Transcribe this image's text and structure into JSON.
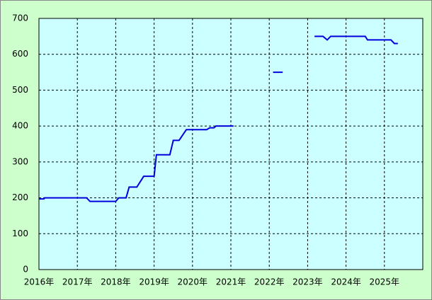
{
  "chart_data": {
    "type": "line",
    "x": [
      2016,
      2016.13,
      2016.15,
      2017.24,
      2017.33,
      2018.0,
      2018.08,
      2018.27,
      2018.35,
      2018.55,
      2018.73,
      2019.0,
      2019.06,
      2019.41,
      2019.5,
      2019.65,
      2019.84,
      2020.37,
      2020.45,
      2020.56,
      2020.61,
      2021.07,
      2021.5,
      2022.1,
      2022.35,
      2022.7,
      2023.18,
      2023.4,
      2023.51,
      2023.6,
      2024.5,
      2024.56,
      2025.17,
      2025.26,
      2025.35
    ],
    "series": [
      {
        "color": "#0000dd",
        "values": [
          197,
          197,
          200,
          200,
          190,
          190,
          200,
          200,
          230,
          230,
          260,
          260,
          320,
          320,
          360,
          360,
          390,
          390,
          395,
          395,
          400,
          400,
          null,
          550,
          550,
          null,
          650,
          650,
          640,
          650,
          650,
          640,
          640,
          630,
          630
        ]
      }
    ],
    "xlim": [
      2016,
      2026
    ],
    "xticks": [
      {
        "value": 2016,
        "label": "2016年"
      },
      {
        "value": 2017,
        "label": "2017年"
      },
      {
        "value": 2018,
        "label": "2018年"
      },
      {
        "value": 2019,
        "label": "2019年"
      },
      {
        "value": 2020,
        "label": "2020年"
      },
      {
        "value": 2021,
        "label": "2021年"
      },
      {
        "value": 2022,
        "label": "2022年"
      },
      {
        "value": 2023,
        "label": "2023年"
      },
      {
        "value": 2024,
        "label": "2024年"
      },
      {
        "value": 2025,
        "label": "2025年"
      }
    ],
    "ylim": [
      0,
      700
    ],
    "yticks": [
      0,
      100,
      200,
      300,
      400,
      500,
      600,
      700
    ],
    "grid": true
  }
}
